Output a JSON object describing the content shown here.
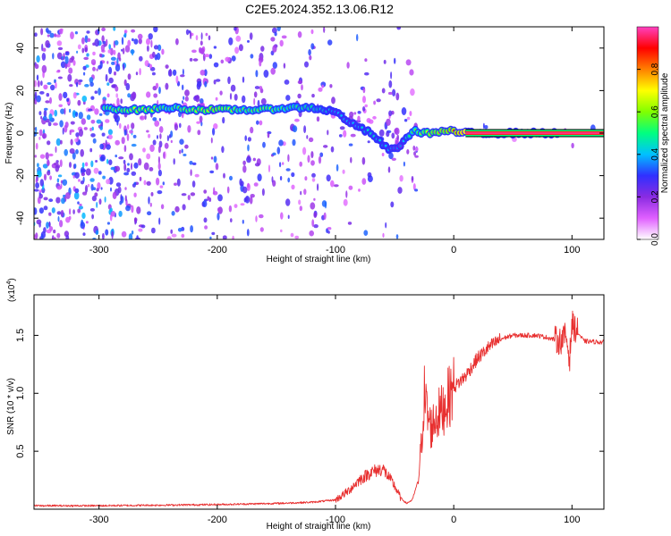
{
  "figure": {
    "title": "C2E5.2024.352.13.06.R12"
  },
  "chart_data": [
    {
      "type": "heatmap",
      "xlabel": "Height of straight line (km)",
      "ylabel": "Frequency (Hz)",
      "xlim": [
        -355,
        127
      ],
      "ylim": [
        -50,
        50
      ],
      "x_ticks": [
        -300,
        -200,
        -100,
        0,
        100
      ],
      "y_ticks": [
        -40,
        -20,
        0,
        20,
        40
      ],
      "colorbar": {
        "label": "Normalized spectral amplitude",
        "range": [
          0,
          1
        ],
        "ticks": [
          "0.0",
          "0.2",
          "0.4",
          "0.6",
          "0.8"
        ],
        "tick_values": [
          0.0,
          0.2,
          0.4,
          0.6,
          0.8
        ],
        "colormap": [
          "#ffffff",
          "#e060ff",
          "#8a2be2",
          "#3030ff",
          "#00c0ff",
          "#00ff80",
          "#80ff00",
          "#ffff00",
          "#ff8000",
          "#ff0000",
          "#ff40c0"
        ]
      },
      "ridge": [
        {
          "x": -295,
          "y": 12,
          "amp": 0.6
        },
        {
          "x": -280,
          "y": 11,
          "amp": 0.65
        },
        {
          "x": -260,
          "y": 11,
          "amp": 0.7
        },
        {
          "x": -240,
          "y": 12,
          "amp": 0.55
        },
        {
          "x": -220,
          "y": 11,
          "amp": 0.7
        },
        {
          "x": -200,
          "y": 11,
          "amp": 0.75
        },
        {
          "x": -180,
          "y": 11,
          "amp": 0.6
        },
        {
          "x": -160,
          "y": 11,
          "amp": 0.65
        },
        {
          "x": -140,
          "y": 12,
          "amp": 0.55
        },
        {
          "x": -120,
          "y": 12,
          "amp": 0.5
        },
        {
          "x": -100,
          "y": 10,
          "amp": 0.4
        },
        {
          "x": -85,
          "y": 4,
          "amp": 0.4
        },
        {
          "x": -70,
          "y": 0,
          "amp": 0.45
        },
        {
          "x": -55,
          "y": -8,
          "amp": 0.4
        },
        {
          "x": -45,
          "y": -6,
          "amp": 0.35
        },
        {
          "x": -35,
          "y": 1,
          "amp": 0.55
        },
        {
          "x": -20,
          "y": 0,
          "amp": 0.75
        },
        {
          "x": -5,
          "y": 1,
          "amp": 0.8
        },
        {
          "x": 10,
          "y": 0,
          "amp": 1.0
        },
        {
          "x": 90,
          "y": 0,
          "amp": 0.6
        }
      ]
    },
    {
      "type": "line",
      "xlabel": "Height of straight line (km)",
      "ylabel": "SNR (10 * v/v)",
      "multiplier_label": "(x10",
      "multiplier_exp": "4",
      "xlim": [
        -355,
        127
      ],
      "ylim": [
        0,
        1.85
      ],
      "x_ticks": [
        -300,
        -200,
        -100,
        0,
        100
      ],
      "y_ticks": [
        0.5,
        1.0,
        1.5
      ],
      "y_tick_labels": [
        "0.5",
        "1.0",
        "1.5"
      ],
      "color": "#e83030",
      "series": [
        {
          "x": [
            -355,
            -300,
            -200,
            -150,
            -120,
            -100,
            -90,
            -80,
            -70,
            -60,
            -50,
            -45,
            -40,
            -35,
            -30,
            -27,
            -25,
            -22,
            -19,
            -15,
            -10,
            -5,
            0,
            10,
            20,
            30,
            40,
            50,
            60,
            70,
            80,
            90,
            95,
            98,
            100,
            110,
            127
          ],
          "y": [
            0.03,
            0.03,
            0.04,
            0.05,
            0.06,
            0.08,
            0.15,
            0.25,
            0.32,
            0.35,
            0.2,
            0.1,
            0.05,
            0.08,
            0.25,
            0.6,
            1.0,
            0.8,
            0.7,
            0.8,
            0.85,
            0.95,
            1.05,
            1.15,
            1.3,
            1.4,
            1.47,
            1.5,
            1.5,
            1.5,
            1.48,
            1.45,
            1.5,
            1.3,
            1.6,
            1.45,
            1.44
          ]
        }
      ]
    }
  ]
}
